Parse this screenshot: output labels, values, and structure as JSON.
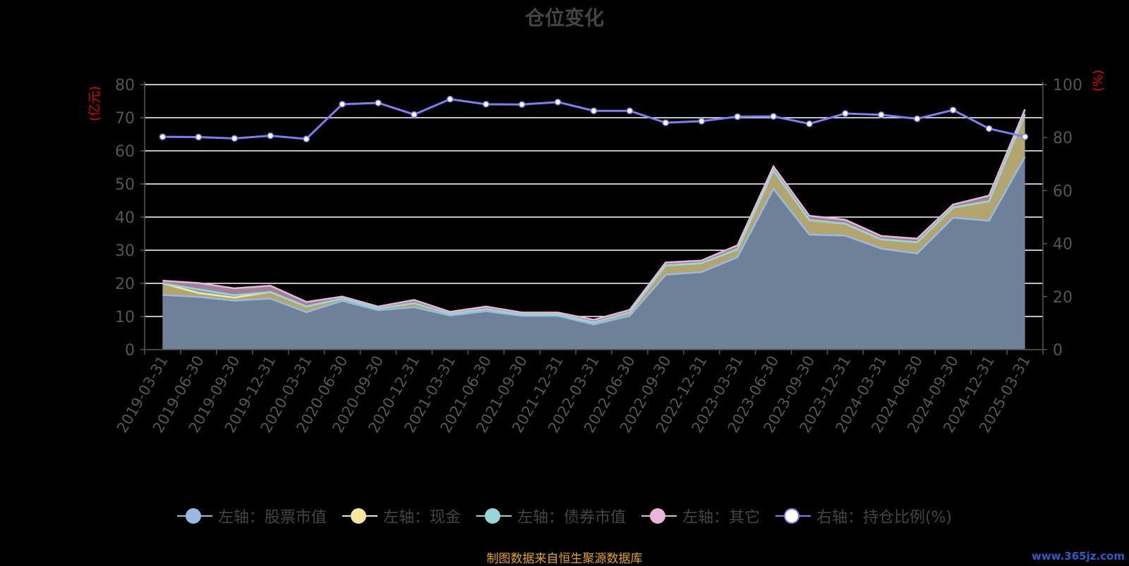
{
  "title": "仓位变化",
  "left_unit": "(亿元)",
  "right_unit": "(%)",
  "footer": "制图数据来自恒生聚源数据库",
  "watermark": "www.365jz.com",
  "colors": {
    "stock": "#9ab8e2",
    "cash": "#f8e59f",
    "bond": "#97d6d6",
    "other": "#e9b5d9",
    "ratio": "#7e7ef2",
    "grid": "#ffffff",
    "axis": "#555555",
    "tick_text": "#555555",
    "stock_fill": "#6e8199",
    "cash_fill": "#b3a570",
    "bond_fill": "#79a5ab",
    "other_fill": "#a0819c"
  },
  "legend": [
    {
      "key": "stock",
      "label": "左轴：股票市值"
    },
    {
      "key": "cash",
      "label": "左轴：现金"
    },
    {
      "key": "bond",
      "label": "左轴：债券市值"
    },
    {
      "key": "other",
      "label": "左轴：其它"
    },
    {
      "key": "ratio",
      "label": "右轴：持仓比例(%)"
    }
  ],
  "chart_data": {
    "type": "area",
    "title": "仓位变化",
    "x": [
      "2019-03-31",
      "2019-06-30",
      "2019-09-30",
      "2019-12-31",
      "2020-03-31",
      "2020-06-30",
      "2020-09-30",
      "2020-12-31",
      "2021-03-31",
      "2021-06-30",
      "2021-09-30",
      "2021-12-31",
      "2022-03-31",
      "2022-06-30",
      "2022-09-30",
      "2022-12-31",
      "2023-03-31",
      "2023-06-30",
      "2023-09-30",
      "2023-12-31",
      "2024-03-31",
      "2024-06-30",
      "2024-09-30",
      "2024-12-31",
      "2025-03-31"
    ],
    "y_left": {
      "label": "(亿元)",
      "range": [
        0,
        80
      ],
      "ticks": [
        0,
        10,
        20,
        30,
        40,
        50,
        60,
        70,
        80
      ]
    },
    "y_right": {
      "label": "(%)",
      "range": [
        0,
        100
      ],
      "ticks": [
        0,
        20,
        40,
        60,
        80,
        100
      ]
    },
    "grid": true,
    "legend_position": "bottom",
    "series": [
      {
        "name": "左轴：股票市值",
        "key": "stock",
        "axis": "left",
        "stacked": true,
        "values": [
          16.5,
          15.9,
          14.8,
          15.4,
          11.3,
          14.7,
          11.9,
          12.8,
          10.3,
          11.6,
          10.2,
          10.2,
          7.6,
          10.2,
          22.6,
          23.4,
          27.9,
          48.5,
          34.7,
          34.4,
          30.5,
          29.0,
          39.8,
          38.9,
          58.2
        ]
      },
      {
        "name": "左轴：现金",
        "key": "cash",
        "axis": "left",
        "stacked": true,
        "values": [
          3.5,
          1.2,
          0.9,
          2.0,
          1.7,
          0.7,
          0.5,
          1.2,
          0.5,
          0.6,
          0.4,
          0.4,
          0.6,
          1.0,
          2.8,
          2.7,
          2.4,
          5.6,
          4.4,
          3.6,
          2.8,
          3.4,
          3.1,
          5.9,
          12.8
        ]
      },
      {
        "name": "左轴：债券市值",
        "key": "bond",
        "axis": "left",
        "stacked": true,
        "values": [
          0,
          1.1,
          0.7,
          0,
          0,
          0,
          0,
          0,
          0,
          0,
          0,
          0,
          0,
          0,
          0,
          0,
          0,
          0,
          0,
          0,
          0,
          0,
          0,
          0,
          0
        ]
      },
      {
        "name": "左轴：其它",
        "key": "other",
        "axis": "left",
        "stacked": true,
        "values": [
          0.8,
          1.9,
          2.1,
          1.9,
          1.4,
          0.6,
          0.6,
          1.0,
          0.6,
          0.8,
          0.6,
          0.6,
          0.8,
          0.8,
          0.9,
          0.8,
          1.2,
          1.2,
          1.3,
          1.2,
          1.0,
          1.1,
          0.9,
          1.7,
          1.5
        ]
      },
      {
        "name": "右轴：持仓比例(%)",
        "key": "ratio",
        "axis": "right",
        "type": "line",
        "values": [
          80.3,
          80.2,
          79.7,
          80.7,
          79.5,
          92.6,
          93.1,
          88.7,
          94.5,
          92.6,
          92.5,
          93.4,
          90.1,
          90.1,
          85.6,
          86.2,
          87.9,
          88.0,
          85.2,
          89.1,
          88.6,
          87.1,
          90.4,
          83.4,
          80.3
        ]
      }
    ]
  }
}
